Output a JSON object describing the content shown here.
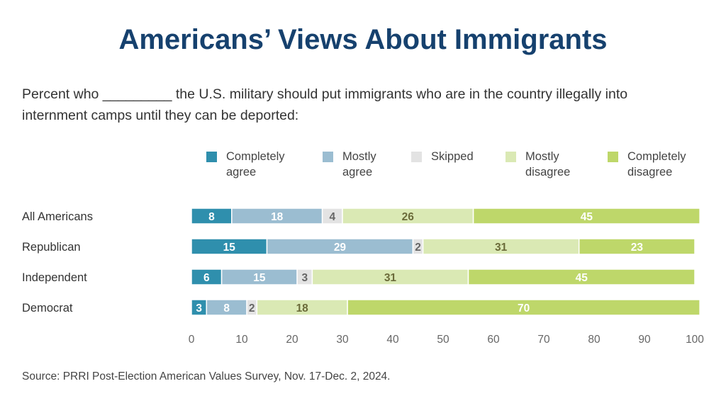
{
  "title": "Americans’ Views About Immigrants",
  "subtitle": "Percent who _________ the U.S. military should put immigrants who are in the country illegally into internment camps until they can be deported:",
  "source": "Source: PRRI Post-Election American Values Survey, Nov. 17-Dec. 2, 2024.",
  "chart_data": {
    "type": "bar",
    "orientation": "horizontal",
    "stacked": true,
    "categories": [
      "All Americans",
      "Republican",
      "Independent",
      "Democrat"
    ],
    "series": [
      {
        "name": "Completely agree",
        "values": [
          8,
          15,
          6,
          3
        ],
        "color": "#2f8fad",
        "label_color": "#ffffff"
      },
      {
        "name": "Mostly agree",
        "values": [
          18,
          29,
          15,
          8
        ],
        "color": "#9bbdd1",
        "label_color": "#ffffff"
      },
      {
        "name": "Skipped",
        "values": [
          4,
          2,
          3,
          2
        ],
        "color": "#e3e3e3",
        "label_color": "#666666"
      },
      {
        "name": "Mostly disagree",
        "values": [
          26,
          31,
          31,
          18
        ],
        "color": "#dae9b4",
        "label_color": "#6b6b3a"
      },
      {
        "name": "Completely disagree",
        "values": [
          45,
          23,
          45,
          70
        ],
        "color": "#bed76a",
        "label_color": "#ffffff"
      }
    ],
    "xlim": [
      0,
      100
    ],
    "xticks": [
      0,
      10,
      20,
      30,
      40,
      50,
      60,
      70,
      80,
      90,
      100
    ],
    "legend": "top",
    "grid": false
  }
}
